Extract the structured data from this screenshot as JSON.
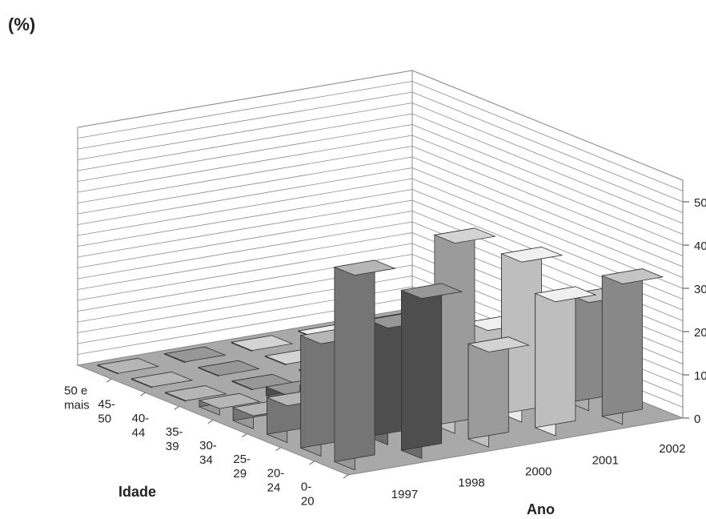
{
  "chart_data": {
    "type": "bar",
    "subtype": "3d-bar",
    "y_unit_label": "(%)",
    "xlabel": "Idade",
    "zlabel": "Ano",
    "categories": [
      {
        "label": [
          "0-",
          "20"
        ]
      },
      {
        "label": [
          "20-",
          "24"
        ]
      },
      {
        "label": [
          "25-",
          "29"
        ]
      },
      {
        "label": [
          "30-",
          "34"
        ]
      },
      {
        "label": [
          "35-",
          "39"
        ]
      },
      {
        "label": [
          "40-",
          "44"
        ]
      },
      {
        "label": [
          "45-",
          "50"
        ]
      },
      {
        "label": [
          "50  e",
          "mais"
        ]
      }
    ],
    "series": [
      {
        "name": "1997",
        "color": "#8f8f8f",
        "values": [
          45.0,
          26.0,
          8.5,
          3.0,
          1.5,
          0,
          0,
          0
        ]
      },
      {
        "name": "1998",
        "color": "#5f5f5f",
        "values": [
          37.0,
          27.0,
          12.0,
          5.5,
          2.0,
          0,
          0,
          0
        ]
      },
      {
        "name": "2000",
        "color": "#bdbdbd",
        "values": [
          22.0,
          44.0,
          20.0,
          5.5,
          2.0,
          0,
          0,
          0
        ]
      },
      {
        "name": "2001",
        "color": "#e8e8e8",
        "values": [
          31.0,
          37.0,
          18.0,
          6.0,
          1.5,
          0.5,
          0.5,
          0
        ]
      },
      {
        "name": "2002",
        "color": "#a6a6a6",
        "values": [
          32.5,
          25.0,
          9.0,
          2.0,
          2.0,
          0.5,
          0.5,
          0
        ]
      }
    ],
    "ylim": [
      0,
      55
    ],
    "yticks": [
      0,
      10,
      20,
      30,
      40,
      50
    ],
    "grid": true
  }
}
